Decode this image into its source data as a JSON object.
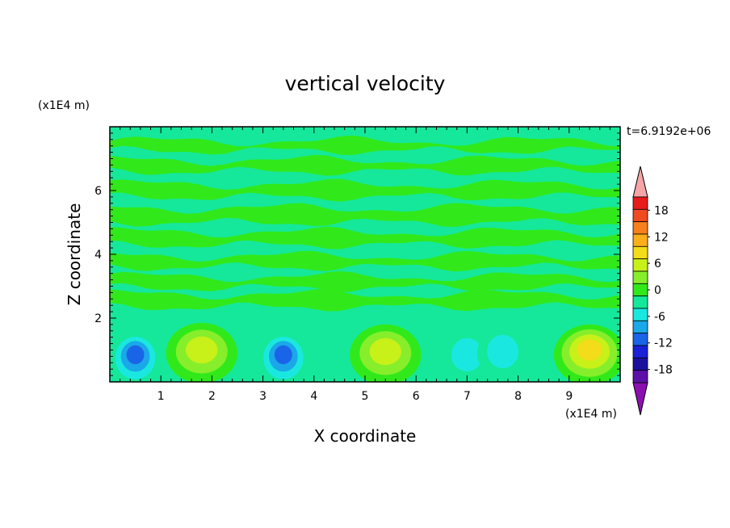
{
  "chart_data": {
    "type": "heatmap",
    "title": "vertical velocity",
    "xlabel": "X coordinate",
    "ylabel": "Z coordinate",
    "x_unit": "(x1E4 m)",
    "y_unit": "(x1E4 m)",
    "time_label": "t=6.9192e+06",
    "xlim": [
      0,
      10
    ],
    "ylim": [
      0,
      8
    ],
    "x_ticks": [
      "1",
      "2",
      "3",
      "4",
      "5",
      "6",
      "7",
      "8",
      "9"
    ],
    "y_ticks": [
      "2",
      "4",
      "6"
    ],
    "grid": false,
    "colorbar": {
      "labels": [
        "18",
        "12",
        "6",
        "0",
        "-6",
        "-12",
        "-18"
      ],
      "levels": [
        21,
        18,
        15,
        12,
        9,
        6,
        3,
        0,
        -3,
        -6,
        -9,
        -12,
        -15,
        -18,
        -21
      ],
      "colors": [
        "#f4a6a6",
        "#e81b1b",
        "#f04a20",
        "#f7801c",
        "#fbaf1a",
        "#f3dc1a",
        "#c8f019",
        "#86ee2a",
        "#31e91a",
        "#15e89a",
        "#1ae8e0",
        "#1aa8e8",
        "#1a64e8",
        "#1a20d8",
        "#1a10a0",
        "#5c10a8",
        "#8c10b0"
      ],
      "top_tri_color": "#f4a6a6",
      "bottom_tri_color": "#8c10b0"
    },
    "background_band_colors": [
      "#31e91a",
      "#15e89a"
    ],
    "features": [
      {
        "type": "updraft",
        "x": 1.8,
        "z": 0.9,
        "peak": 9
      },
      {
        "type": "updraft",
        "x": 5.4,
        "z": 0.85,
        "peak": 8
      },
      {
        "type": "updraft",
        "x": 9.4,
        "z": 0.85,
        "peak": 10
      },
      {
        "type": "downdraft",
        "x": 0.5,
        "z": 0.7,
        "peak": -11
      },
      {
        "type": "downdraft",
        "x": 3.4,
        "z": 0.7,
        "peak": -12
      },
      {
        "type": "downdraft",
        "x": 7.0,
        "z": 0.8,
        "peak": -5
      },
      {
        "type": "downdraft",
        "x": 7.7,
        "z": 0.9,
        "peak": -4
      }
    ]
  }
}
